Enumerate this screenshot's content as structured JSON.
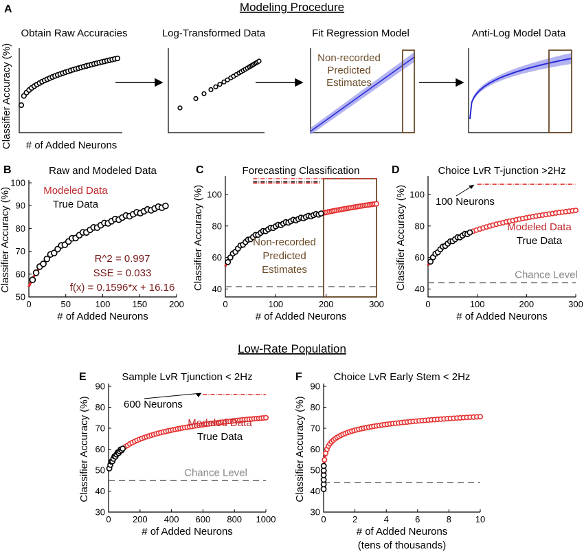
{
  "titles": {
    "top": "Modeling Procedure",
    "bottom": "Low-Rate Population"
  },
  "panel_letters": [
    "A",
    "B",
    "C",
    "D",
    "E",
    "F"
  ],
  "panel_A": {
    "ylabel": "Classifier Accuracy (%)",
    "xlabel": "# of Added Neurons",
    "steps": [
      "Obtain Raw Accuracies",
      "Log-Transformed Data",
      "Fit Regression Model",
      "Anti-Log Model Data"
    ],
    "annotation": [
      "Non-recorded",
      "Predicted",
      "Estimates"
    ],
    "colors": {
      "model": "#2a2ad8",
      "band": "#9a9aee",
      "box": "#6b4a28"
    }
  },
  "chart_data": [
    {
      "id": "B",
      "type": "scatter",
      "title": "Raw and Modeled Data",
      "xlabel": "# of Added Neurons",
      "ylabel": "Classifier Accuracy (%)",
      "xlim": [
        0,
        200
      ],
      "ylim": [
        50,
        100
      ],
      "xticks": [
        0,
        50,
        100,
        150,
        200
      ],
      "yticks": [
        50,
        60,
        70,
        80,
        90,
        100
      ],
      "legend": [
        "Modeled Data",
        "True Data"
      ],
      "legend_colors": [
        "#c0282d",
        "#000000"
      ],
      "stats": [
        "R^2 = 0.997",
        "SSE = 0.033",
        "f(x) = 0.1596*x + 16.16"
      ],
      "stats_color": "#7a1a1a",
      "true_n_max": 185,
      "model": {
        "a": 54.5,
        "b": 35.0,
        "xscale": 20
      },
      "modeled_n_max": 185,
      "chance_level": null
    },
    {
      "id": "C",
      "type": "scatter",
      "title": "Forecasting Classification",
      "xlabel": "# of Added Neurons",
      "ylabel": "Classifier Accuracy (%)",
      "xlim": [
        0,
        300
      ],
      "ylim": [
        35,
        110
      ],
      "xticks": [
        0,
        100,
        200,
        300
      ],
      "yticks": [
        40,
        60,
        80,
        100
      ],
      "annotation": [
        "Non-recorded",
        "Predicted",
        "Estimates"
      ],
      "annotation_color": "#6b4a28",
      "true_n_max": 190,
      "model": {
        "a": 54.5,
        "b": 34.0,
        "xscale": 22
      },
      "modeled_n_max": 300,
      "chance_level": 41.5,
      "forecast_box": [
        195,
        300
      ],
      "sig_lines": [
        {
          "color": "#e53030",
          "y": 110,
          "x": [
            55,
            300
          ]
        },
        {
          "color": "#000000",
          "y": 108,
          "x": [
            55,
            190
          ]
        },
        {
          "color": "#e53030",
          "y": 107.2,
          "x": [
            55,
            190
          ]
        }
      ]
    },
    {
      "id": "D",
      "type": "scatter",
      "title": "Choice LvR T-junction >2Hz",
      "xlabel": "# of Added Neurons",
      "ylabel": "Classifier Accuracy (%)",
      "xlim": [
        0,
        300
      ],
      "ylim": [
        35,
        110
      ],
      "xticks": [
        0,
        100,
        200,
        300
      ],
      "yticks": [
        40,
        60,
        80,
        100
      ],
      "legend": [
        "Modeled Data",
        "True Data"
      ],
      "legend_colors": [
        "#c0282d",
        "#000000"
      ],
      "neuron_label": "100 Neurons",
      "chance_label": "Chance Level",
      "true_n_max": 85,
      "model": {
        "a": 55.0,
        "b": 29.0,
        "xscale": 20
      },
      "modeled_n_max": 300,
      "chance_level": 44,
      "sig_lines": [
        {
          "color": "#e53030",
          "y": 106.5,
          "x": [
            100,
            300
          ]
        }
      ]
    },
    {
      "id": "E",
      "type": "scatter",
      "title": "Sample LvR Tjunction < 2Hz",
      "xlabel": "# of Added Neurons",
      "ylabel": "Classifier Accuracy (%)",
      "xlim": [
        0,
        1000
      ],
      "ylim": [
        30,
        90
      ],
      "xticks": [
        0,
        200,
        400,
        600,
        800,
        1000
      ],
      "yticks": [
        30,
        40,
        50,
        60,
        70,
        80,
        90
      ],
      "legend": [
        "Modeled Data",
        "True Data"
      ],
      "legend_colors": [
        "#c0282d",
        "#000000"
      ],
      "neuron_label": "600 Neurons",
      "chance_label": "Chance Level",
      "true_n_max": 90,
      "model": {
        "a": 50.0,
        "b": 15.5,
        "xscale": 25
      },
      "modeled_n_max": 1000,
      "chance_level": 45,
      "sig_lines": [
        {
          "color": "#e53030",
          "y": 86,
          "x": [
            600,
            1000
          ]
        }
      ]
    },
    {
      "id": "F",
      "type": "scatter",
      "title": "Choice LvR Early Stem < 2Hz",
      "xlabel": "# of Added Neurons",
      "xlabel2": "(tens of thousands)",
      "ylabel": "Classifier Accuracy (%)",
      "xlim": [
        0,
        10
      ],
      "ylim": [
        30,
        90
      ],
      "xticks": [
        0,
        2,
        4,
        6,
        8,
        10
      ],
      "yticks": [
        30,
        40,
        50,
        60,
        70,
        80,
        90
      ],
      "true_n_max": 0.01,
      "model": {
        "a": 42.0,
        "b": 9.3,
        "xscale": 0.0025
      },
      "modeled_n_max": 10,
      "chance_level": 44
    }
  ]
}
